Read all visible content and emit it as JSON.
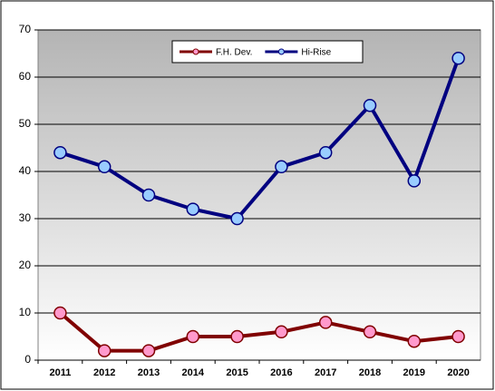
{
  "chart_data": {
    "type": "line",
    "categories": [
      "2011",
      "2012",
      "2013",
      "2014",
      "2015",
      "2016",
      "2017",
      "2018",
      "2019",
      "2020"
    ],
    "series": [
      {
        "name": "F.H. Dev.",
        "color": "#800000",
        "marker_color": "#ff99cc",
        "values": [
          10,
          2,
          2,
          5,
          5,
          6,
          8,
          6,
          4,
          5
        ]
      },
      {
        "name": "Hi-Rise",
        "color": "#000080",
        "marker_color": "#99ccff",
        "values": [
          44,
          41,
          35,
          32,
          30,
          41,
          44,
          54,
          38,
          64
        ]
      }
    ],
    "ylim": [
      0,
      70
    ],
    "yticks": [
      0,
      10,
      20,
      30,
      40,
      50,
      60,
      70
    ],
    "grid": true,
    "legend": "top"
  }
}
